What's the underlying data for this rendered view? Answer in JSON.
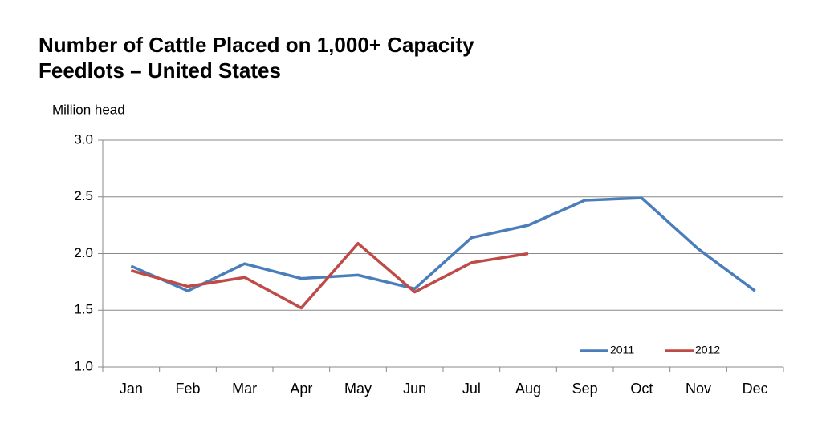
{
  "chart_data": {
    "type": "line",
    "title": "Number of Cattle Placed on 1,000+ Capacity Feedlots – United States",
    "y_label": "Million head",
    "categories": [
      "Jan",
      "Feb",
      "Mar",
      "Apr",
      "May",
      "Jun",
      "Jul",
      "Aug",
      "Sep",
      "Oct",
      "Nov",
      "Dec"
    ],
    "series": [
      {
        "name": "2011",
        "color": "#4a7ebb",
        "values": [
          1.89,
          1.67,
          1.91,
          1.78,
          1.81,
          1.69,
          2.14,
          2.25,
          2.47,
          2.49,
          2.04,
          1.67
        ]
      },
      {
        "name": "2012",
        "color": "#be4b48",
        "values": [
          1.85,
          1.71,
          1.79,
          1.52,
          2.09,
          1.66,
          1.92,
          2.0,
          null,
          null,
          null,
          null
        ]
      }
    ],
    "ylim": [
      1,
      3
    ],
    "yticks": [
      {
        "value": 1,
        "label": "1.0"
      },
      1.5,
      {
        "value": 2,
        "label": "2.0"
      },
      2.5,
      {
        "value": 3,
        "label": "3.0"
      }
    ],
    "grid": true,
    "legend": "lower right"
  }
}
